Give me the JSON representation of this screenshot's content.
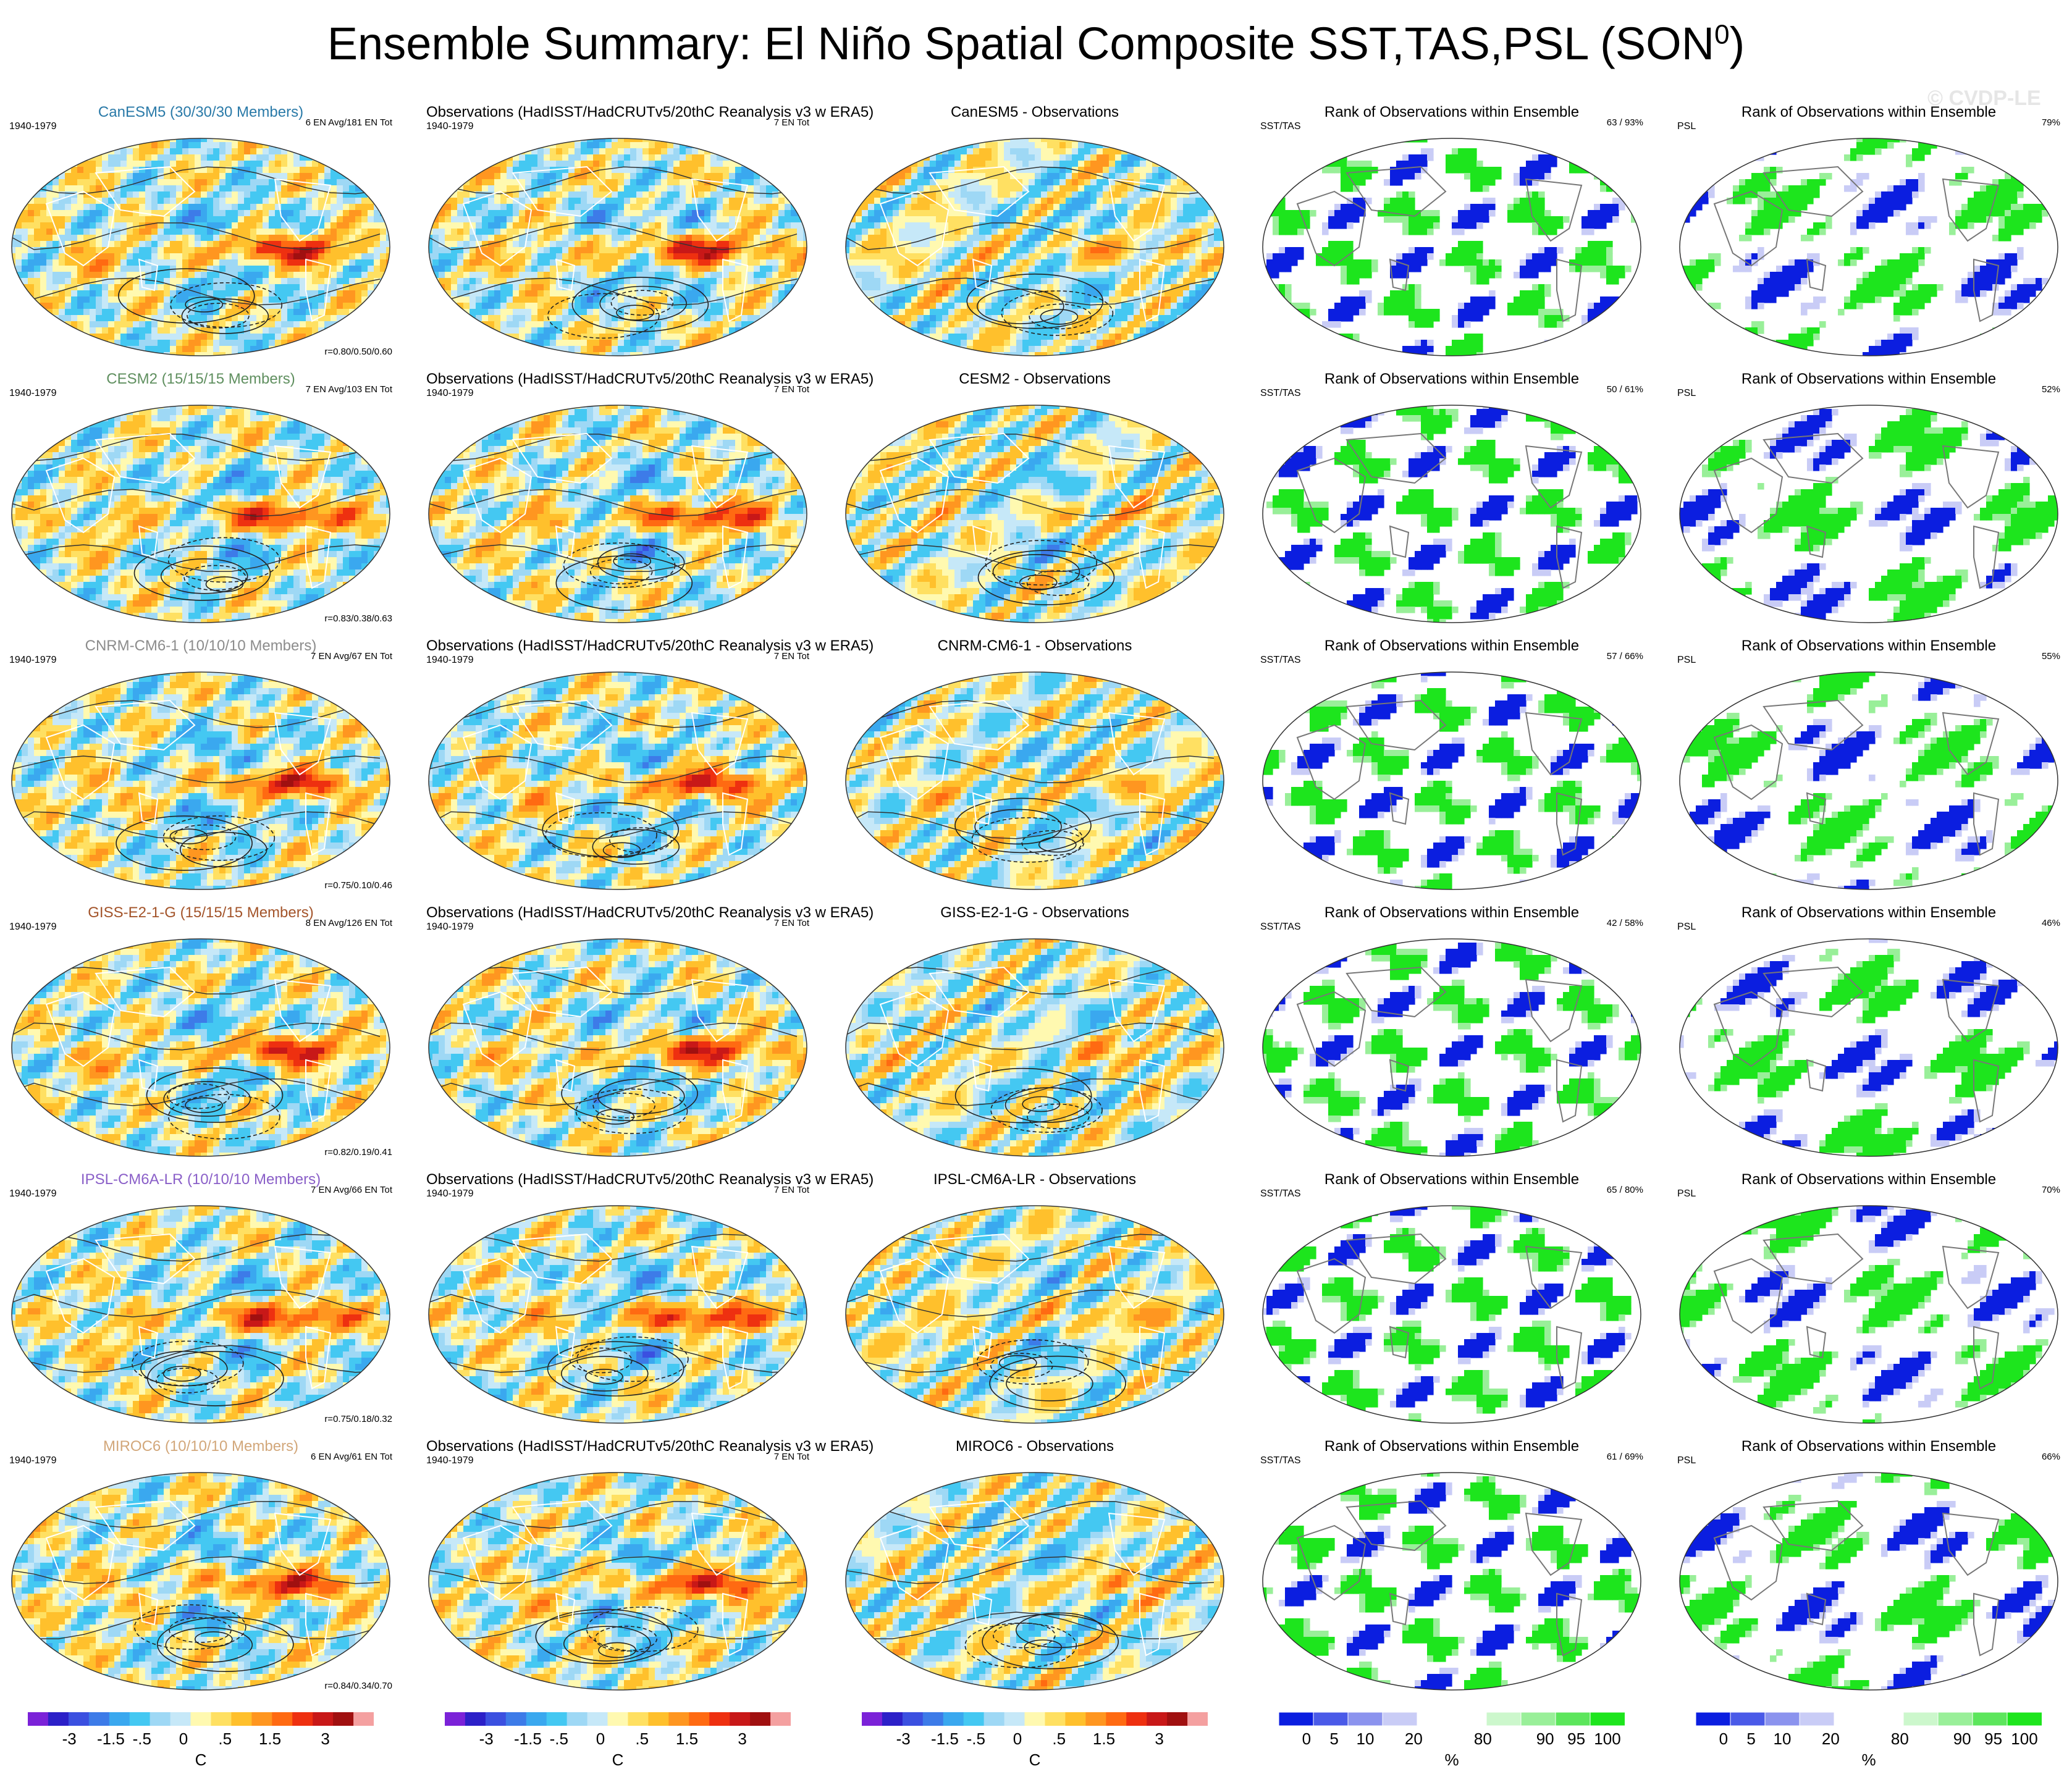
{
  "title_main": "Ensemble Summary: El Niño Spatial Composite SST,TAS,PSL (SON",
  "title_sup": "0",
  "title_end": ")",
  "copyright": "© CVDP-LE",
  "period": "1940-1979",
  "obs_title": "Observations (HadISST/HadCRUTv5/20thC Reanalysis v3 w ERA5)",
  "obs_count": "7 EN Tot",
  "rank_title": "Rank of Observations within Ensemble",
  "sst_label": "SST/TAS",
  "psl_label": "PSL",
  "rows": [
    {
      "model": "CanESM5 (30/30/30 Members)",
      "model_color": "#2a7aa8",
      "en": "6 EN Avg/181 EN Tot",
      "corr": "r=0.80/0.50/0.60",
      "diff": "CanESM5 - Observations",
      "sst_rank": "63 /  93%",
      "psl_rank": "79%"
    },
    {
      "model": "CESM2 (15/15/15 Members)",
      "model_color": "#5f8f5f",
      "en": "7 EN Avg/103 EN Tot",
      "corr": "r=0.83/0.38/0.63",
      "diff": "CESM2 - Observations",
      "sst_rank": "50 /  61%",
      "psl_rank": "52%"
    },
    {
      "model": "CNRM-CM6-1 (10/10/10 Members)",
      "model_color": "#8c8c8c",
      "en": "7 EN Avg/67 EN Tot",
      "corr": "r=0.75/0.10/0.46",
      "diff": "CNRM-CM6-1 - Observations",
      "sst_rank": "57 /  66%",
      "psl_rank": "55%"
    },
    {
      "model": "GISS-E2-1-G (15/15/15 Members)",
      "model_color": "#a3542a",
      "en": "8 EN Avg/126 EN Tot",
      "corr": "r=0.82/0.19/0.41",
      "diff": "GISS-E2-1-G - Observations",
      "sst_rank": "42 /  58%",
      "psl_rank": "46%"
    },
    {
      "model": "IPSL-CM6A-LR (10/10/10 Members)",
      "model_color": "#8a5fc8",
      "en": "7 EN Avg/66 EN Tot",
      "corr": "r=0.75/0.18/0.32",
      "diff": "IPSL-CM6A-LR - Observations",
      "sst_rank": "65 /  80%",
      "psl_rank": "70%"
    },
    {
      "model": "MIROC6 (10/10/10 Members)",
      "model_color": "#d2a77a",
      "en": "6 EN Avg/61 EN Tot",
      "corr": "r=0.84/0.34/0.70",
      "diff": "MIROC6 - Observations",
      "sst_rank": "61 /  69%",
      "psl_rank": "66%"
    }
  ],
  "colorbar_temp": {
    "colors": [
      "#7b22d8",
      "#2c20c8",
      "#3b50e0",
      "#3d7be8",
      "#3aa8ef",
      "#44c8f2",
      "#9ed8f5",
      "#c6e8f8",
      "#fff9b0",
      "#ffe062",
      "#ffc02c",
      "#ff9620",
      "#ff6a12",
      "#ee3010",
      "#c81818",
      "#a01010",
      "#f4a0a0"
    ],
    "labels": [
      "-3",
      "-1.5",
      "-.5",
      "0",
      ".5",
      "1.5",
      "3"
    ],
    "unit": "C"
  },
  "colorbar_rank": {
    "colors": [
      "#0b1ee0",
      "#4a5ae8",
      "#8b93ee",
      "#c9ccf6",
      "#ffffff",
      "#ffffff",
      "#ccf7cc",
      "#99ef99",
      "#5ce65c",
      "#1de51d"
    ],
    "labels": [
      "0",
      "5",
      "10",
      "20",
      "80",
      "90",
      "95",
      "100"
    ],
    "unit": "%"
  },
  "chart_data": {
    "type": "heatmap",
    "panel_grid": "6 rows x 5 columns of global map composites",
    "columns": [
      "Model ensemble composite",
      "Observations",
      "Model - Observations",
      "Rank SST/TAS",
      "Rank PSL"
    ],
    "temperature_scale_C": [
      -3,
      -1.5,
      -0.5,
      0,
      0.5,
      1.5,
      3
    ],
    "rank_scale_percent": [
      0,
      5,
      10,
      20,
      80,
      90,
      95,
      100
    ]
  }
}
